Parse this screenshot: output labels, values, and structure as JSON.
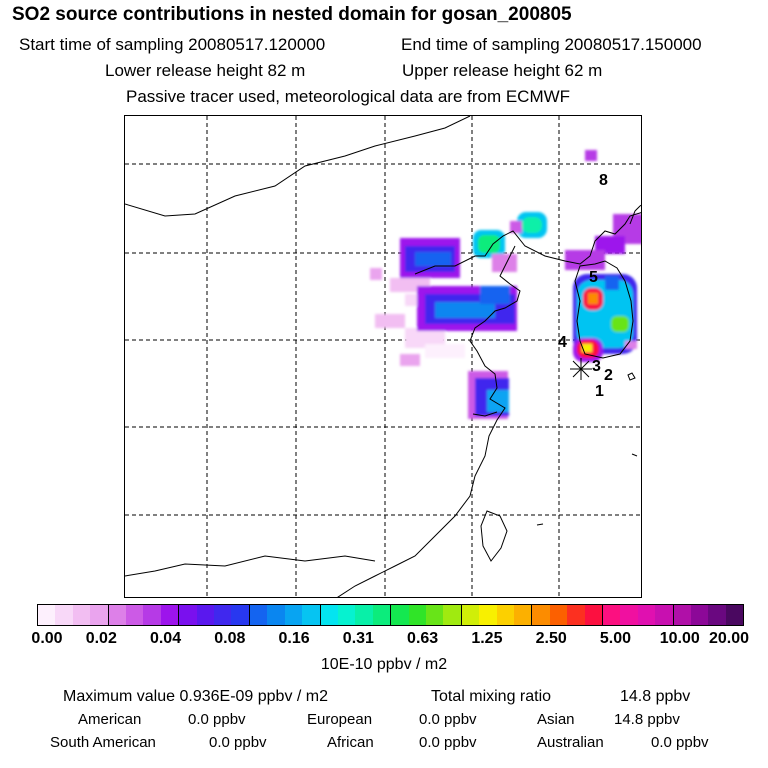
{
  "header": {
    "title": "SO2 source contributions in nested domain for gosan_200805",
    "start_label": "Start time of sampling 20080517.120000",
    "end_label": "End time of sampling 20080517.150000",
    "lower_label": "Lower release height   82 m",
    "upper_label": "Upper release height   62 m",
    "info": "Passive tracer used, meteorological data are from ECMWF"
  },
  "map": {
    "markers": [
      {
        "label": "1"
      },
      {
        "label": "2"
      },
      {
        "label": "3"
      },
      {
        "label": "4"
      },
      {
        "label": "5"
      },
      {
        "label": "8"
      }
    ]
  },
  "colorbar": {
    "colors": [
      "#fdf0fd",
      "#f8d8f8",
      "#f2bef2",
      "#eaa4ee",
      "#dd80e8",
      "#cc5ae6",
      "#b63ae6",
      "#9d14ec",
      "#7a10ee",
      "#5a18ee",
      "#4028ee",
      "#2838f0",
      "#1464f0",
      "#0a86f0",
      "#08a4f2",
      "#06c4f2",
      "#04e4f0",
      "#06f2d0",
      "#08f0a8",
      "#0cec7c",
      "#14e850",
      "#30e428",
      "#68e418",
      "#a0ea10",
      "#d0ee08",
      "#f8f000",
      "#fcd000",
      "#fcb000",
      "#fc8c00",
      "#fc6000",
      "#fc3020",
      "#fc1040",
      "#fc1080",
      "#f010a0",
      "#e010b0",
      "#c810b0",
      "#b010a8",
      "#8c0898",
      "#6a0880",
      "#4a0860"
    ],
    "ticks": [
      "0.00",
      "0.02",
      "0.04",
      "0.08",
      "0.16",
      "0.31",
      "0.63",
      "1.25",
      "2.50",
      "5.00",
      "10.00",
      "20.00"
    ],
    "unit": "10E-10 ppbv / m2"
  },
  "footer": {
    "max_text": "Maximum value  0.936E-09 ppbv / m2",
    "total_label": "Total mixing ratio",
    "total_value": "14.8 ppbv",
    "rows": [
      [
        {
          "label": "American",
          "value": "0.0 ppbv"
        },
        {
          "label": "European",
          "value": "0.0 ppbv"
        },
        {
          "label": "Asian",
          "value": "14.8 ppbv"
        }
      ],
      [
        {
          "label": "South American",
          "value": "0.0 ppbv"
        },
        {
          "label": "African",
          "value": "0.0 ppbv"
        },
        {
          "label": "Australian",
          "value": "0.0 ppbv"
        }
      ]
    ]
  }
}
